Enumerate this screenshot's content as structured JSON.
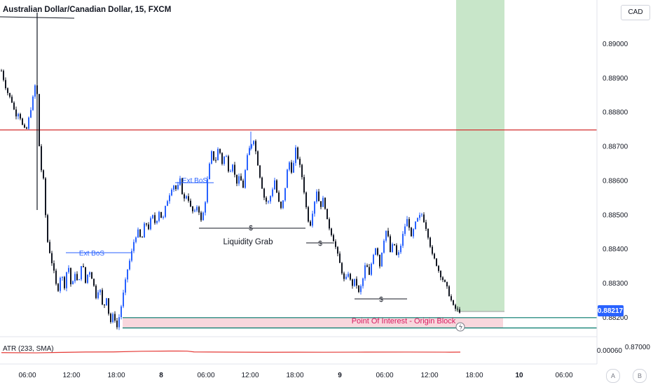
{
  "chart_title": "Australian Dollar/Canadian Dollar, 15, FXCM",
  "currency": "CAD",
  "atr_label": "ATR (233, SMA)",
  "atr_value": "0.00060",
  "atr_right_value": "0.87000",
  "current_price": "0.88217",
  "hidden_tick": "0.88200",
  "scale_buttons": [
    "A",
    "B"
  ],
  "annotations": {
    "ext_bos_1": "Ext BoS",
    "ext_bos_2": "Ext BoS",
    "liquidity_grab": "Liquidity Grab",
    "poi": "Point Of Interest - Origin Block",
    "dollar": "$"
  },
  "colors": {
    "bull": "#2962ff",
    "bear": "#131722",
    "resistance": "#d32f2f",
    "poi_fill": "#f8d7dd",
    "poi_line": "#00796b",
    "target_fill": "#c8e6c9",
    "atr_line": "#e53935"
  },
  "chart_data": {
    "type": "candlestick",
    "title": "Australian Dollar/Canadian Dollar, 15, FXCM",
    "y_ticks": [
      "0.89000",
      "0.88900",
      "0.88800",
      "0.88700",
      "0.88600",
      "0.88500",
      "0.88400",
      "0.88300"
    ],
    "x_ticks": [
      "06:00",
      "12:00",
      "18:00",
      "8",
      "06:00",
      "12:00",
      "18:00",
      "9",
      "06:00",
      "12:00",
      "18:00",
      "10",
      "06:00"
    ],
    "ylim": [
      0.8815,
      0.891
    ],
    "resistance_level": 0.88747,
    "poi_zone": [
      0.88168,
      0.88198
    ],
    "target_zone": [
      0.88217,
      0.891
    ],
    "price_path": [
      [
        0,
        0.8892
      ],
      [
        5,
        0.8888
      ],
      [
        10,
        0.8885
      ],
      [
        15,
        0.8883
      ],
      [
        20,
        0.8879
      ],
      [
        25,
        0.888
      ],
      [
        30,
        0.8876
      ],
      [
        35,
        0.8874
      ],
      [
        40,
        0.8879
      ],
      [
        45,
        0.8884
      ],
      [
        50,
        0.889
      ],
      [
        55,
        0.8865
      ],
      [
        60,
        0.886
      ],
      [
        65,
        0.8843
      ],
      [
        70,
        0.8838
      ],
      [
        75,
        0.8833
      ],
      [
        80,
        0.8827
      ],
      [
        85,
        0.8833
      ],
      [
        90,
        0.8829
      ],
      [
        95,
        0.8836
      ],
      [
        100,
        0.8828
      ],
      [
        105,
        0.8833
      ],
      [
        110,
        0.8829
      ],
      [
        115,
        0.8837
      ],
      [
        120,
        0.883
      ],
      [
        125,
        0.8834
      ],
      [
        130,
        0.8831
      ],
      [
        135,
        0.8826
      ],
      [
        140,
        0.8829
      ],
      [
        145,
        0.8822
      ],
      [
        150,
        0.8826
      ],
      [
        155,
        0.8818
      ],
      [
        160,
        0.8821
      ],
      [
        165,
        0.8817
      ],
      [
        170,
        0.8822
      ],
      [
        175,
        0.8828
      ],
      [
        180,
        0.8834
      ],
      [
        185,
        0.8838
      ],
      [
        190,
        0.8843
      ],
      [
        195,
        0.8845
      ],
      [
        200,
        0.8842
      ],
      [
        205,
        0.8848
      ],
      [
        210,
        0.8846
      ],
      [
        215,
        0.885
      ],
      [
        220,
        0.8847
      ],
      [
        225,
        0.8851
      ],
      [
        230,
        0.8848
      ],
      [
        235,
        0.8853
      ],
      [
        240,
        0.8856
      ],
      [
        245,
        0.8859
      ],
      [
        250,
        0.8857
      ],
      [
        255,
        0.886
      ],
      [
        260,
        0.8854
      ],
      [
        265,
        0.8856
      ],
      [
        270,
        0.8852
      ],
      [
        275,
        0.885
      ],
      [
        280,
        0.8853
      ],
      [
        285,
        0.8848
      ],
      [
        290,
        0.8852
      ],
      [
        295,
        0.8862
      ],
      [
        300,
        0.8868
      ],
      [
        305,
        0.8865
      ],
      [
        310,
        0.887
      ],
      [
        315,
        0.8865
      ],
      [
        320,
        0.8868
      ],
      [
        325,
        0.8862
      ],
      [
        330,
        0.8865
      ],
      [
        335,
        0.8859
      ],
      [
        340,
        0.8861
      ],
      [
        345,
        0.8858
      ],
      [
        350,
        0.8866
      ],
      [
        355,
        0.887
      ],
      [
        360,
        0.8872
      ],
      [
        365,
        0.8866
      ],
      [
        370,
        0.886
      ],
      [
        375,
        0.8855
      ],
      [
        380,
        0.8853
      ],
      [
        385,
        0.8856
      ],
      [
        390,
        0.886
      ],
      [
        395,
        0.8854
      ],
      [
        400,
        0.8851
      ],
      [
        405,
        0.8858
      ],
      [
        410,
        0.8866
      ],
      [
        415,
        0.8862
      ],
      [
        420,
        0.8869
      ],
      [
        425,
        0.8865
      ],
      [
        430,
        0.886
      ],
      [
        435,
        0.8852
      ],
      [
        440,
        0.8846
      ],
      [
        445,
        0.8852
      ],
      [
        450,
        0.8857
      ],
      [
        455,
        0.8852
      ],
      [
        460,
        0.8855
      ],
      [
        465,
        0.8848
      ],
      [
        470,
        0.8845
      ],
      [
        475,
        0.8842
      ],
      [
        480,
        0.8838
      ],
      [
        485,
        0.8834
      ],
      [
        490,
        0.883
      ],
      [
        495,
        0.8833
      ],
      [
        500,
        0.8829
      ],
      [
        505,
        0.8831
      ],
      [
        510,
        0.8827
      ],
      [
        515,
        0.883
      ],
      [
        520,
        0.8836
      ],
      [
        525,
        0.8832
      ],
      [
        530,
        0.8838
      ],
      [
        535,
        0.8841
      ],
      [
        540,
        0.8835
      ],
      [
        545,
        0.8842
      ],
      [
        550,
        0.8846
      ],
      [
        555,
        0.8839
      ],
      [
        560,
        0.8842
      ],
      [
        565,
        0.8837
      ],
      [
        570,
        0.8841
      ],
      [
        575,
        0.8846
      ],
      [
        580,
        0.8849
      ],
      [
        585,
        0.8843
      ],
      [
        590,
        0.8847
      ],
      [
        595,
        0.8849
      ],
      [
        600,
        0.885
      ],
      [
        605,
        0.8847
      ],
      [
        610,
        0.8843
      ],
      [
        615,
        0.8838
      ],
      [
        620,
        0.8836
      ],
      [
        625,
        0.8833
      ],
      [
        630,
        0.8831
      ],
      [
        635,
        0.8829
      ],
      [
        640,
        0.8826
      ],
      [
        645,
        0.8823
      ],
      [
        650,
        0.8822
      ],
      [
        655,
        0.88217
      ]
    ],
    "atr_path": [
      [
        0,
        0.000585
      ],
      [
        50,
        0.000578
      ],
      [
        80,
        0.00059
      ],
      [
        120,
        0.000602
      ],
      [
        160,
        0.000605
      ],
      [
        200,
        0.000625
      ],
      [
        240,
        0.000632
      ],
      [
        265,
        0.00063
      ],
      [
        275,
        0.000605
      ],
      [
        320,
        0.0006
      ],
      [
        380,
        0.000595
      ],
      [
        420,
        0.000598
      ],
      [
        460,
        0.000596
      ],
      [
        520,
        0.0006
      ],
      [
        580,
        0.000601
      ],
      [
        640,
        0.000598
      ],
      [
        655,
        0.0006
      ]
    ]
  }
}
